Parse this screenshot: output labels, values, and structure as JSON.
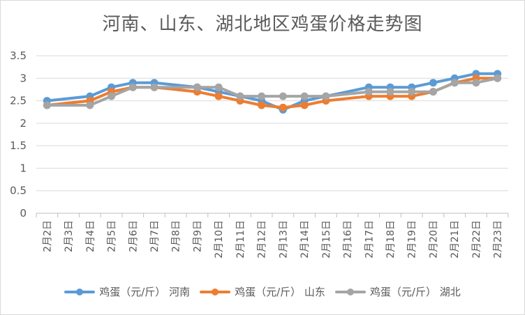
{
  "chart_data": {
    "type": "line",
    "title": "河南、山东、湖北地区鸡蛋价格走势图",
    "xlabel": "",
    "ylabel": "",
    "ylim": [
      0,
      3.5
    ],
    "yticks": [
      "0",
      "0.5",
      "1",
      "1.5",
      "2",
      "2.5",
      "3",
      "3.5"
    ],
    "grid": true,
    "legend_position": "bottom",
    "categories": [
      "2月2日",
      "2月3日",
      "2月4日",
      "2月5日",
      "2月6日",
      "2月7日",
      "2月8日",
      "2月9日",
      "2月10日",
      "2月11日",
      "2月12日",
      "2月13日",
      "2月14日",
      "2月15日",
      "2月16日",
      "2月17日",
      "2月18日",
      "2月19日",
      "2月20日",
      "2月21日",
      "2月22日",
      "2月23日"
    ],
    "series": [
      {
        "name": "鸡蛋（元/斤） 河南",
        "color": "#5b9bd5",
        "points": [
          [
            0,
            2.5
          ],
          [
            2,
            2.6
          ],
          [
            3,
            2.8
          ],
          [
            4,
            2.9
          ],
          [
            5,
            2.9
          ],
          [
            7,
            2.8
          ],
          [
            8,
            2.7
          ],
          [
            9,
            2.6
          ],
          [
            10,
            2.5
          ],
          [
            11,
            2.3
          ],
          [
            12,
            2.5
          ],
          [
            13,
            2.6
          ],
          [
            15,
            2.8
          ],
          [
            16,
            2.8
          ],
          [
            17,
            2.8
          ],
          [
            18,
            2.9
          ],
          [
            19,
            3.0
          ],
          [
            20,
            3.1
          ],
          [
            21,
            3.1
          ]
        ]
      },
      {
        "name": "鸡蛋（元/斤） 山东",
        "color": "#ed7d31",
        "points": [
          [
            0,
            2.4
          ],
          [
            2,
            2.5
          ],
          [
            3,
            2.7
          ],
          [
            4,
            2.8
          ],
          [
            5,
            2.8
          ],
          [
            7,
            2.7
          ],
          [
            8,
            2.6
          ],
          [
            9,
            2.5
          ],
          [
            10,
            2.4
          ],
          [
            11,
            2.35
          ],
          [
            12,
            2.4
          ],
          [
            13,
            2.5
          ],
          [
            15,
            2.6
          ],
          [
            16,
            2.6
          ],
          [
            17,
            2.6
          ],
          [
            18,
            2.7
          ],
          [
            19,
            2.9
          ],
          [
            20,
            3.0
          ],
          [
            21,
            3.0
          ]
        ]
      },
      {
        "name": "鸡蛋（元/斤） 湖北",
        "color": "#a5a5a5",
        "points": [
          [
            0,
            2.4
          ],
          [
            2,
            2.4
          ],
          [
            3,
            2.6
          ],
          [
            4,
            2.8
          ],
          [
            5,
            2.8
          ],
          [
            7,
            2.8
          ],
          [
            8,
            2.8
          ],
          [
            9,
            2.6
          ],
          [
            10,
            2.6
          ],
          [
            11,
            2.6
          ],
          [
            12,
            2.6
          ],
          [
            13,
            2.6
          ],
          [
            15,
            2.7
          ],
          [
            16,
            2.7
          ],
          [
            17,
            2.7
          ],
          [
            18,
            2.7
          ],
          [
            19,
            2.9
          ],
          [
            20,
            2.9
          ],
          [
            21,
            3.0
          ]
        ]
      }
    ]
  }
}
